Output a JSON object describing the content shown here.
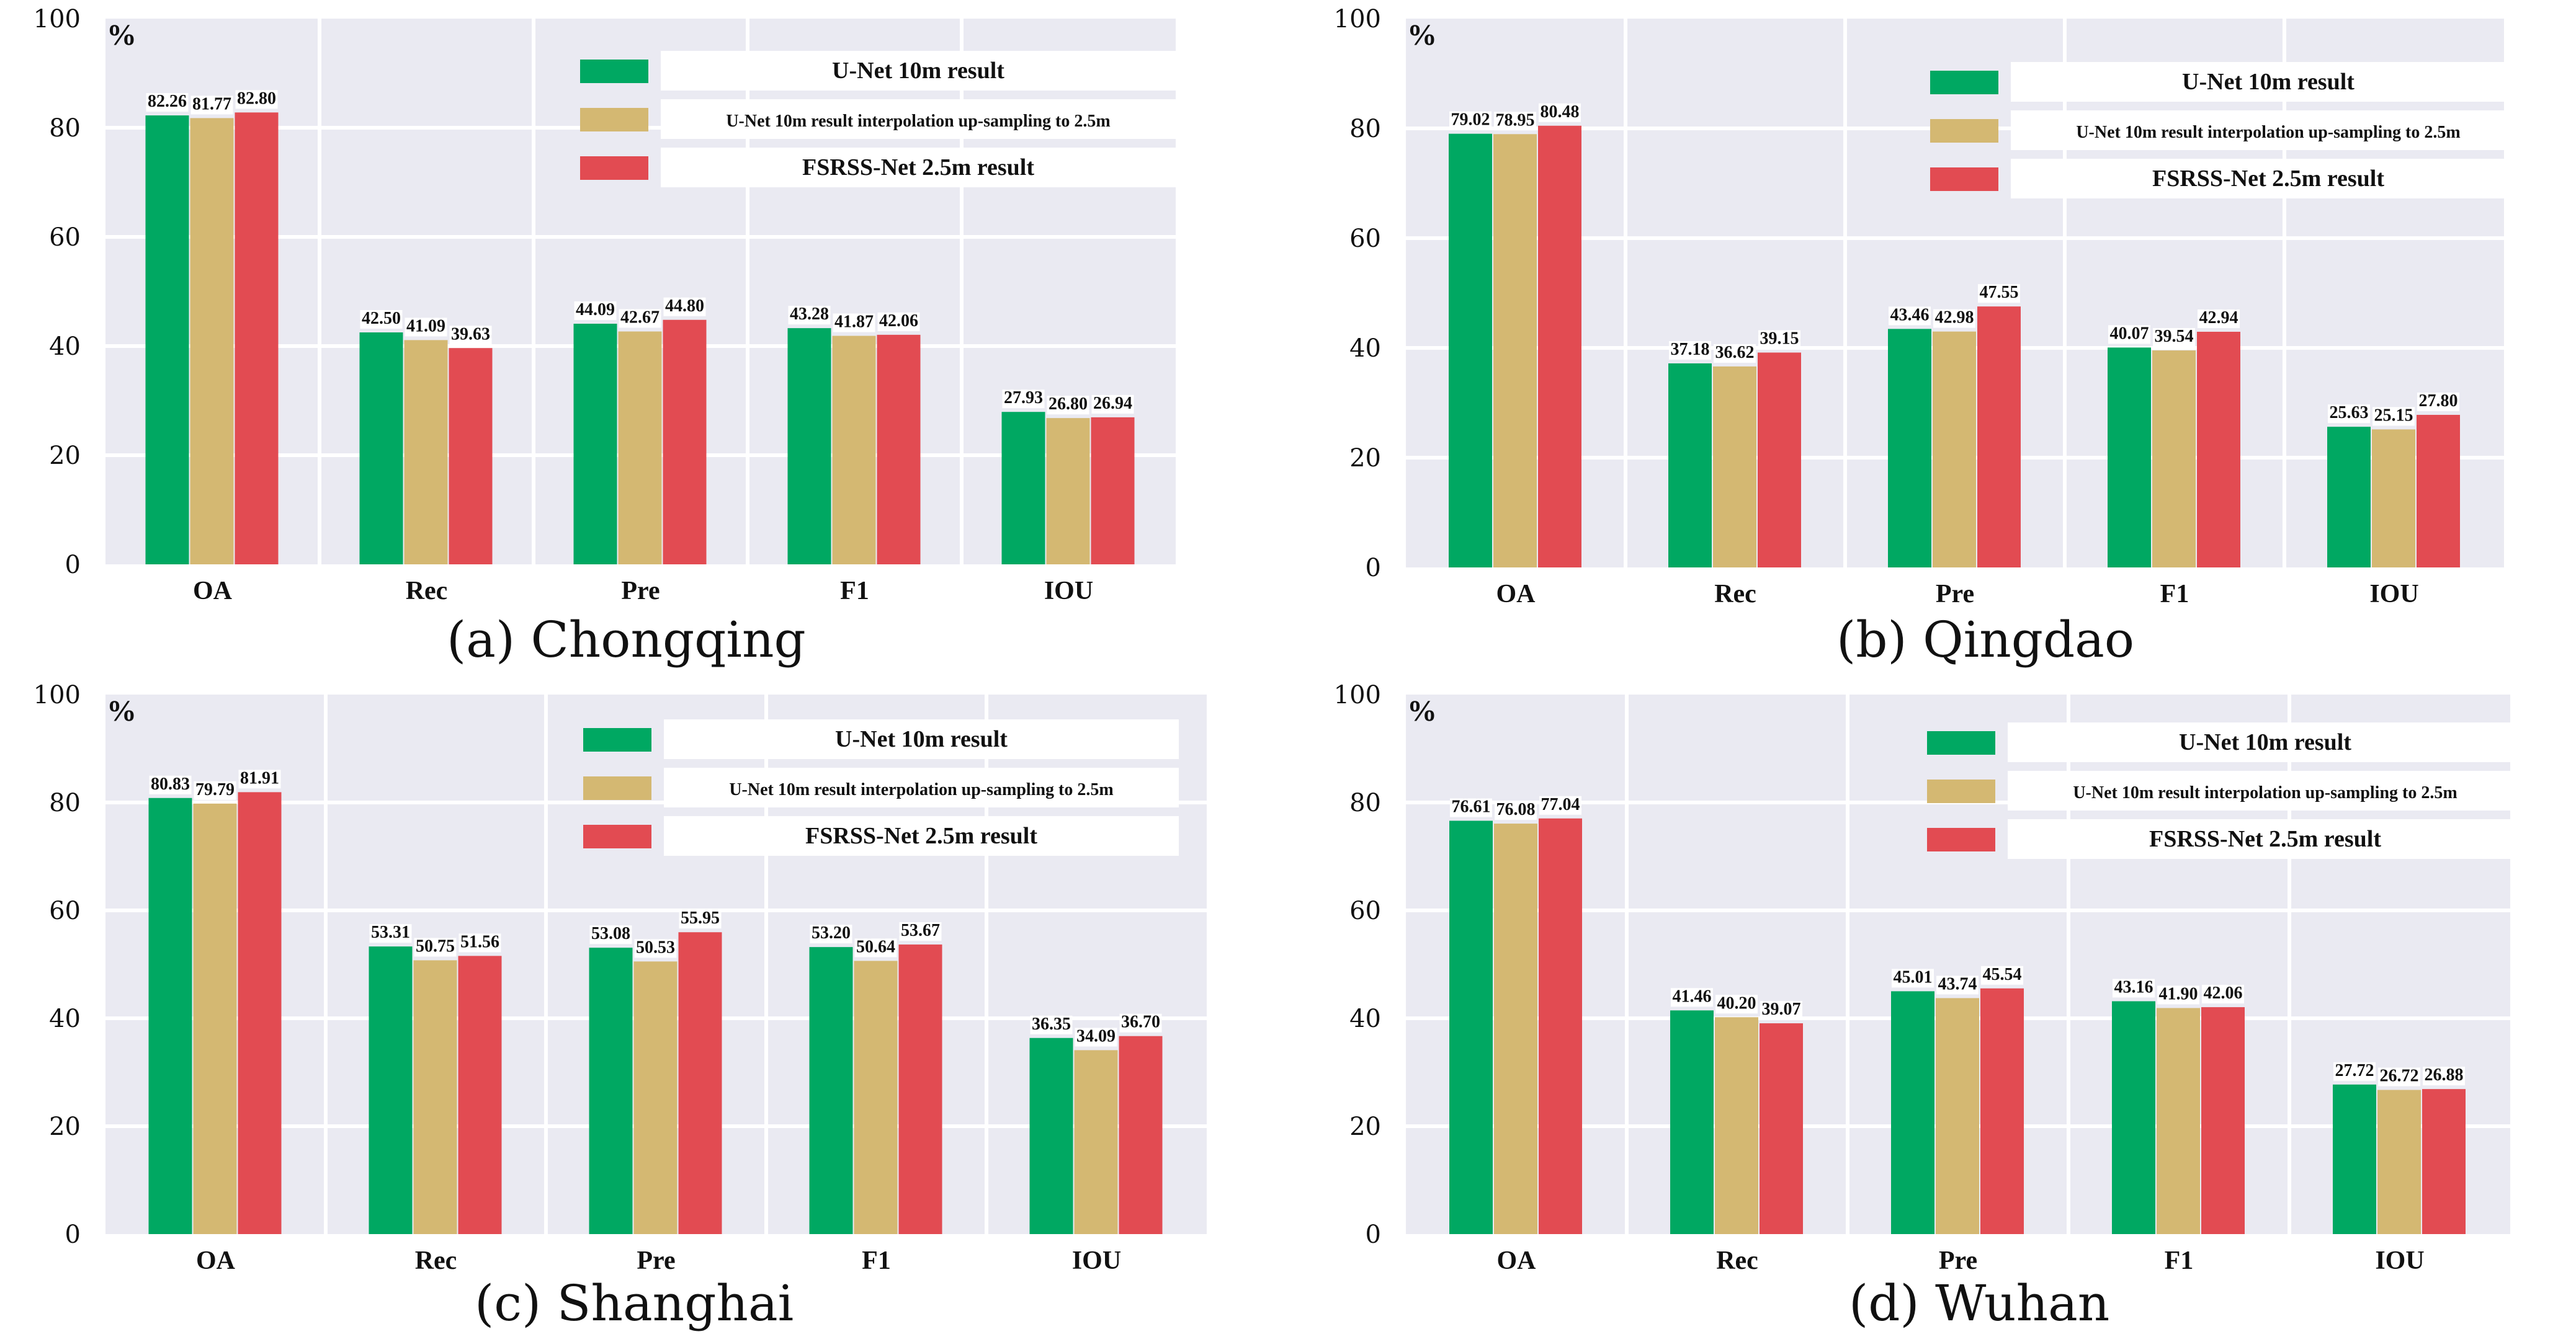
{
  "colors": {
    "unet10m": "#00a862",
    "interp": "#d4b872",
    "fsrss": "#e24b52"
  },
  "legend": [
    "U-Net 10m result",
    "U-Net 10m result interpolation up-sampling to 2.5m",
    "FSRSS-Net 2.5m result"
  ],
  "chart_data": [
    {
      "type": "bar",
      "title": "(a) Chongqing",
      "unit": "%",
      "ylim": [
        0,
        100
      ],
      "yticks": [
        "0",
        "20",
        "40",
        "60",
        "80",
        "100"
      ],
      "categories": [
        "OA",
        "Rec",
        "Pre",
        "F1",
        "IOU"
      ],
      "series": [
        {
          "name": "U-Net 10m result",
          "values": [
            82.26,
            42.5,
            44.09,
            43.28,
            27.93
          ]
        },
        {
          "name": "U-Net 10m result interpolation up-sampling to 2.5m",
          "values": [
            81.77,
            41.09,
            42.67,
            41.87,
            26.8
          ]
        },
        {
          "name": "FSRSS-Net 2.5m result",
          "values": [
            82.8,
            39.63,
            44.8,
            42.06,
            26.94
          ]
        }
      ],
      "grid": true,
      "legend_position": "top-right"
    },
    {
      "type": "bar",
      "title": "(b) Qingdao",
      "unit": "%",
      "ylim": [
        0,
        100
      ],
      "yticks": [
        "0",
        "20",
        "40",
        "60",
        "80",
        "100"
      ],
      "categories": [
        "OA",
        "Rec",
        "Pre",
        "F1",
        "IOU"
      ],
      "series": [
        {
          "name": "U-Net 10m result",
          "values": [
            79.02,
            37.18,
            43.46,
            40.07,
            25.63
          ]
        },
        {
          "name": "U-Net 10m result interpolation up-sampling to 2.5m",
          "values": [
            78.95,
            36.62,
            42.98,
            39.54,
            25.15
          ]
        },
        {
          "name": "FSRSS-Net 2.5m result",
          "values": [
            80.48,
            39.15,
            47.55,
            42.94,
            27.8
          ]
        }
      ],
      "grid": true,
      "legend_position": "top-right"
    },
    {
      "type": "bar",
      "title": "(c) Shanghai",
      "unit": "%",
      "ylim": [
        0,
        100
      ],
      "yticks": [
        "0",
        "20",
        "40",
        "60",
        "80",
        "100"
      ],
      "categories": [
        "OA",
        "Rec",
        "Pre",
        "F1",
        "IOU"
      ],
      "series": [
        {
          "name": "U-Net 10m result",
          "values": [
            80.83,
            53.31,
            53.08,
            53.2,
            36.35
          ]
        },
        {
          "name": "U-Net 10m result interpolation up-sampling to 2.5m",
          "values": [
            79.79,
            50.75,
            50.53,
            50.64,
            34.09
          ]
        },
        {
          "name": "FSRSS-Net 2.5m result",
          "values": [
            81.91,
            51.56,
            55.95,
            53.67,
            36.7
          ]
        }
      ],
      "grid": true,
      "legend_position": "top-right"
    },
    {
      "type": "bar",
      "title": "(d) Wuhan",
      "unit": "%",
      "ylim": [
        0,
        100
      ],
      "yticks": [
        "0",
        "20",
        "40",
        "60",
        "80",
        "100"
      ],
      "categories": [
        "OA",
        "Rec",
        "Pre",
        "F1",
        "IOU"
      ],
      "series": [
        {
          "name": "U-Net 10m result",
          "values": [
            76.61,
            41.46,
            45.01,
            43.16,
            27.72
          ]
        },
        {
          "name": "U-Net 10m result interpolation up-sampling to 2.5m",
          "values": [
            76.08,
            40.2,
            43.74,
            41.9,
            26.72
          ]
        },
        {
          "name": "FSRSS-Net 2.5m result",
          "values": [
            77.04,
            39.07,
            45.54,
            42.06,
            26.88
          ]
        }
      ],
      "grid": true,
      "legend_position": "top-right"
    }
  ]
}
